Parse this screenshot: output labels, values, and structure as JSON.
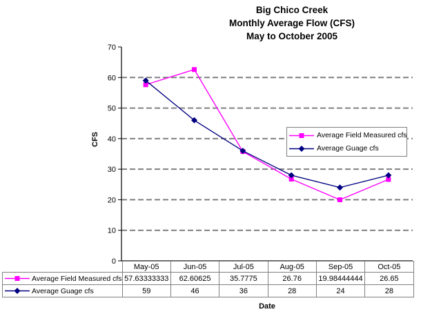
{
  "chart_data": {
    "type": "line",
    "title": "Big Chico Creek Monthly Average Flow (CFS) May to October 2005",
    "title_lines": [
      "Big Chico Creek",
      "Monthly Average Flow (CFS)",
      "May to October 2005"
    ],
    "xlabel": "Date",
    "ylabel": "CFS",
    "ylim": [
      0,
      70
    ],
    "ytick_step": 10,
    "grid": "horizontal-dashed",
    "gridline_color": "#7f7f7f",
    "axis_color": "#000000",
    "legend_position": "middle-right",
    "categories": [
      "May-05",
      "Jun-05",
      "Jul-05",
      "Aug-05",
      "Sep-05",
      "Oct-05"
    ],
    "series": [
      {
        "name": "Average Field Measured cfs",
        "color": "#FF00FF",
        "marker": "square",
        "values": [
          57.63333333,
          62.60625,
          35.7775,
          26.76,
          19.98444444,
          26.65
        ],
        "display_values": [
          "57.63333333",
          "62.60625",
          "35.7775",
          "26.76",
          "19.98444444",
          "26.65"
        ]
      },
      {
        "name": "Average Guage cfs",
        "color": "#000080",
        "marker": "diamond",
        "values": [
          59,
          46,
          36,
          28,
          24,
          28
        ],
        "display_values": [
          "59",
          "46",
          "36",
          "28",
          "24",
          "28"
        ]
      }
    ]
  }
}
